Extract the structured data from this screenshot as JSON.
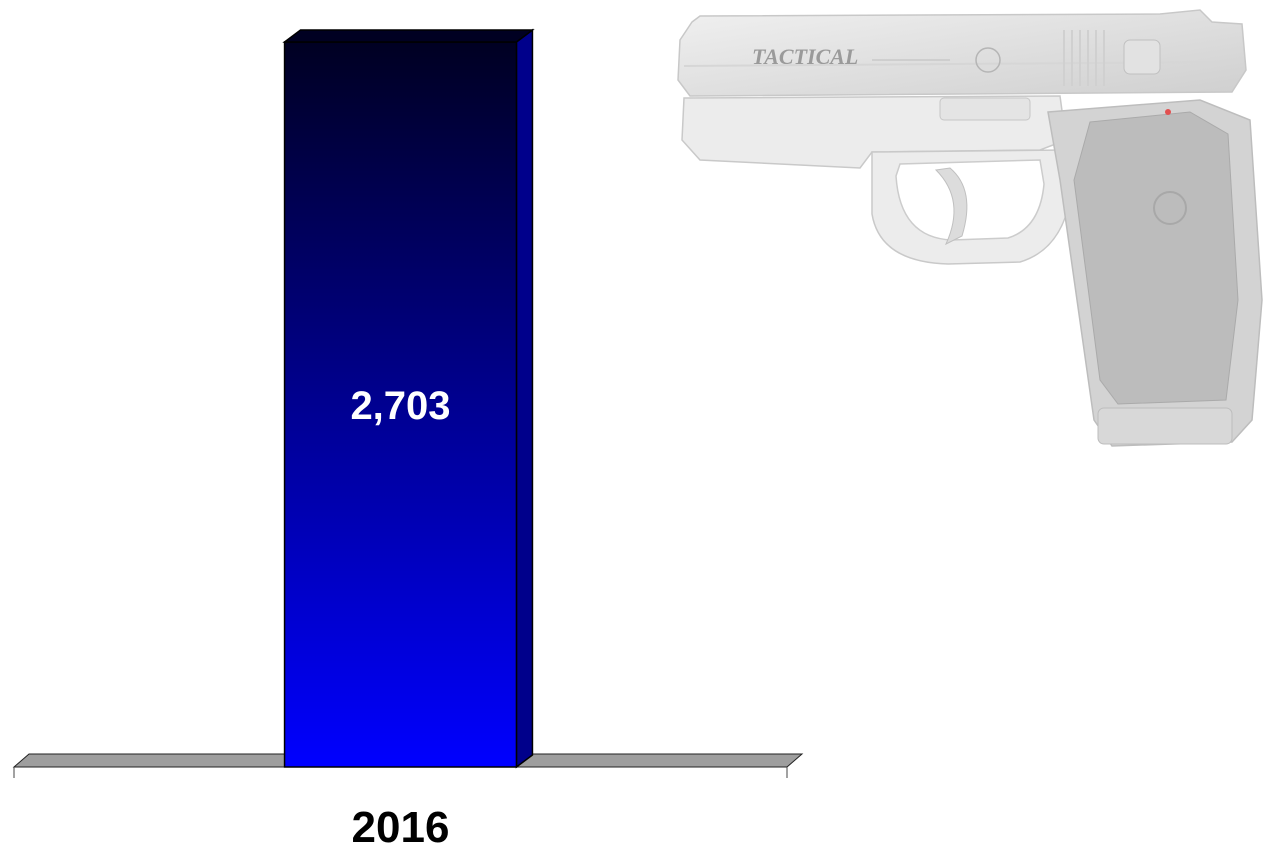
{
  "chart_data": {
    "type": "bar",
    "categories": [
      "2016"
    ],
    "values": [
      2703
    ],
    "value_labels": [
      "2,703"
    ],
    "ylim": [
      0,
      2703
    ],
    "grid": false,
    "legend": "none",
    "style": "3d",
    "colors": {
      "bar_top": "#000022",
      "bar_bottom": "#0000ff",
      "bar_side": "#00008b",
      "floor": "#9e9e9e",
      "value_label": "#ffffff",
      "category_label": "#000000"
    }
  },
  "decor": {
    "illustration": "pistol-illustration",
    "engraving": "TACTICAL"
  }
}
